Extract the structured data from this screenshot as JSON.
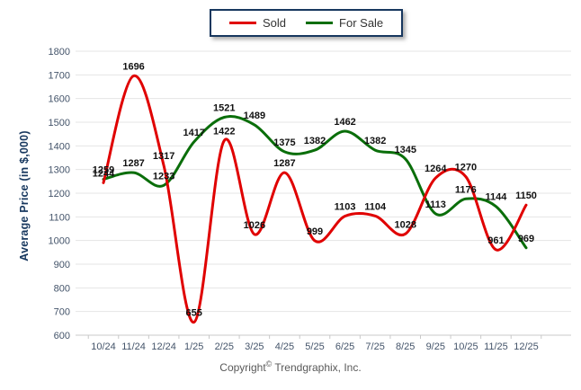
{
  "y_axis_title": "Average Price (in $,000)",
  "legend": {
    "items": [
      {
        "label": "Sold"
      },
      {
        "label": "For Sale"
      }
    ]
  },
  "footer": {
    "prefix": "Copyright",
    "symbol": "©",
    "suffix": "Trendgraphix, Inc."
  },
  "chart_data": {
    "type": "line",
    "title": "",
    "xlabel": "",
    "ylabel": "Average Price (in $,000)",
    "categories": [
      "10/24",
      "11/24",
      "12/24",
      "1/25",
      "2/25",
      "3/25",
      "4/25",
      "5/25",
      "6/25",
      "7/25",
      "8/25",
      "9/25",
      "10/25",
      "11/25",
      "12/25"
    ],
    "series": [
      {
        "name": "Sold",
        "color": "#e00000",
        "values": [
          1244,
          1696,
          1317,
          655,
          1422,
          1026,
          1287,
          999,
          1103,
          1104,
          1028,
          1264,
          1270,
          961,
          1150
        ]
      },
      {
        "name": "For Sale",
        "color": "#0a6e0a",
        "values": [
          1259,
          1287,
          1233,
          1417,
          1521,
          1489,
          1375,
          1382,
          1462,
          1382,
          1345,
          1113,
          1176,
          1144,
          969
        ]
      }
    ],
    "ylim": [
      600,
      1800
    ],
    "ytick_step": 100,
    "grid": true,
    "smooth": true,
    "legend_position": "top-center",
    "colors": {
      "gridline": "#e4e4e4",
      "axis": "#c8c8c8",
      "tick_text": "#44546a",
      "data_label": "#111111"
    }
  }
}
